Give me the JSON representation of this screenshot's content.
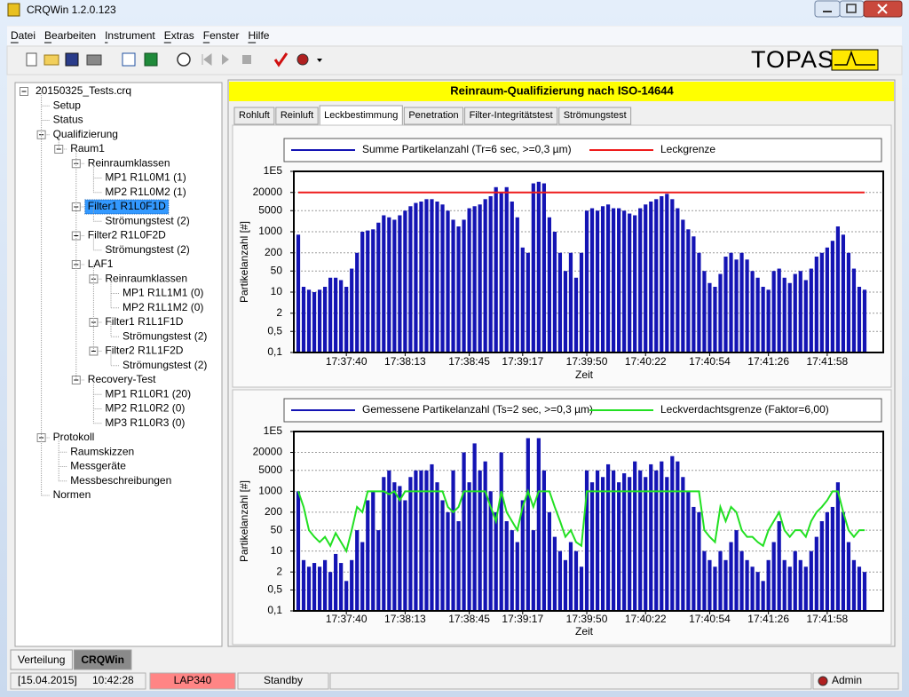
{
  "window": {
    "title": "CRQWin 1.2.0.123"
  },
  "menu": [
    "Datei",
    "Bearbeiten",
    "Instrument",
    "Extras",
    "Fenster",
    "Hilfe"
  ],
  "logo": "TOPAS",
  "tree": {
    "label": "20150325_Tests.crq",
    "children": [
      {
        "label": "Setup"
      },
      {
        "label": "Status"
      },
      {
        "label": "Qualifizierung",
        "children": [
          {
            "label": "Raum1",
            "children": [
              {
                "label": "Reinraumklassen",
                "children": [
                  {
                    "label": "MP1  R1L0M1 (1)"
                  },
                  {
                    "label": "MP2  R1L0M2 (1)"
                  }
                ]
              },
              {
                "label": "Filter1  R1L0F1D",
                "selected": true,
                "children": [
                  {
                    "label": "Strömungstest (2)"
                  }
                ]
              },
              {
                "label": "Filter2  R1L0F2D",
                "children": [
                  {
                    "label": "Strömungstest (2)"
                  }
                ]
              },
              {
                "label": "LAF1",
                "children": [
                  {
                    "label": "Reinraumklassen",
                    "children": [
                      {
                        "label": "MP1  R1L1M1 (0)"
                      },
                      {
                        "label": "MP2  R1L1M2 (0)"
                      }
                    ]
                  },
                  {
                    "label": "Filter1  R1L1F1D",
                    "children": [
                      {
                        "label": "Strömungstest (2)"
                      }
                    ]
                  },
                  {
                    "label": "Filter2  R1L1F2D",
                    "children": [
                      {
                        "label": "Strömungstest (2)"
                      }
                    ]
                  }
                ]
              },
              {
                "label": "Recovery-Test",
                "children": [
                  {
                    "label": "MP1  R1L0R1 (20)"
                  },
                  {
                    "label": "MP2  R1L0R2 (0)"
                  },
                  {
                    "label": "MP3  R1L0R3 (0)"
                  }
                ]
              }
            ]
          }
        ]
      },
      {
        "label": "Protokoll",
        "children": [
          {
            "label": "Raumskizzen"
          },
          {
            "label": "Messgeräte"
          },
          {
            "label": "Messbeschreibungen"
          }
        ]
      },
      {
        "label": "Normen"
      }
    ]
  },
  "header": "Reinraum-Qualifizierung nach ISO-14644",
  "tabs": [
    "Rohluft",
    "Reinluft",
    "Leckbestimmung",
    "Penetration",
    "Filter-Integritätstest",
    "Strömungstest"
  ],
  "active_tab": 2,
  "chart_data": [
    {
      "type": "bar",
      "y_label": "Partikelanzahl [#]",
      "x_label": "Zeit",
      "log_scale": true,
      "grid": true,
      "ylim": [
        0.1,
        100000
      ],
      "yticks": [
        {
          "value": 100000,
          "label": "1E5"
        },
        20000,
        5000,
        1000,
        200,
        50,
        10,
        2,
        {
          "value": 0.5,
          "label": "0,5"
        },
        {
          "value": 0.1,
          "label": "0,1"
        }
      ],
      "categories": [
        null,
        null,
        null,
        null,
        null,
        null,
        null,
        null,
        null,
        "17:37:40",
        null,
        null,
        null,
        null,
        null,
        null,
        null,
        null,
        null,
        null,
        "17:38:13",
        null,
        null,
        null,
        null,
        null,
        null,
        null,
        null,
        null,
        null,
        null,
        "17:38:45",
        null,
        null,
        null,
        null,
        null,
        null,
        null,
        null,
        null,
        "17:39:17",
        null,
        null,
        null,
        null,
        null,
        null,
        null,
        null,
        null,
        null,
        null,
        "17:39:50",
        null,
        null,
        null,
        null,
        null,
        null,
        null,
        null,
        null,
        null,
        "17:40:22",
        null,
        null,
        null,
        null,
        null,
        null,
        null,
        null,
        null,
        null,
        null,
        "17:40:54",
        null,
        null,
        null,
        null,
        null,
        null,
        null,
        null,
        null,
        null,
        "17:41:26",
        null,
        null,
        null,
        null,
        null,
        null,
        null,
        null,
        null,
        null,
        "17:41:58",
        null,
        null,
        null,
        null,
        null,
        null,
        null
      ],
      "series": [
        {
          "name": "Summe Partikelanzahl (Tr=6 sec, >=0,3 µm)",
          "type": "bar",
          "color": "#1414b4",
          "values": [
            800,
            15,
            12,
            10,
            12,
            15,
            30,
            30,
            25,
            15,
            60,
            200,
            1000,
            1100,
            1200,
            2000,
            3500,
            3000,
            2500,
            3500,
            5000,
            7000,
            9000,
            10000,
            12000,
            12000,
            10000,
            8000,
            5000,
            2500,
            1500,
            2500,
            6000,
            7000,
            8000,
            12000,
            15000,
            30000,
            20000,
            30000,
            10000,
            3000,
            300,
            200,
            40000,
            45000,
            40000,
            3000,
            1000,
            200,
            50,
            200,
            30,
            200,
            5000,
            6000,
            5000,
            7000,
            8000,
            6000,
            6000,
            5000,
            4000,
            3500,
            6000,
            8000,
            10000,
            12000,
            15000,
            18000,
            12000,
            6000,
            2500,
            1200,
            700,
            200,
            50,
            20,
            15,
            40,
            150,
            200,
            120,
            200,
            120,
            50,
            30,
            15,
            12,
            50,
            60,
            30,
            20,
            40,
            50,
            25,
            60,
            150,
            200,
            300,
            500,
            1500,
            800,
            200,
            60,
            15,
            12
          ]
        },
        {
          "name": "Leckgrenze",
          "type": "line",
          "color": "#ee1c1c",
          "values": [
            20000,
            20000,
            20000,
            20000,
            20000,
            20000,
            20000,
            20000,
            20000,
            20000,
            20000,
            20000,
            20000,
            20000,
            20000,
            20000,
            20000,
            20000,
            20000,
            20000,
            20000,
            20000,
            20000,
            20000,
            20000,
            20000,
            20000,
            20000,
            20000,
            20000,
            20000,
            20000,
            20000,
            20000,
            20000,
            20000,
            20000,
            20000,
            20000,
            20000,
            20000,
            20000,
            20000,
            20000,
            20000,
            20000,
            20000,
            20000,
            20000,
            20000,
            20000,
            20000,
            20000,
            20000,
            20000,
            20000,
            20000,
            20000,
            20000,
            20000,
            20000,
            20000,
            20000,
            20000,
            20000,
            20000,
            20000,
            20000,
            20000,
            20000,
            20000,
            20000,
            20000,
            20000,
            20000,
            20000,
            20000,
            20000,
            20000,
            20000,
            20000,
            20000,
            20000,
            20000,
            20000,
            20000,
            20000,
            20000,
            20000,
            20000,
            20000,
            20000,
            20000,
            20000,
            20000,
            20000,
            20000,
            20000,
            20000,
            20000,
            20000,
            20000,
            20000,
            20000,
            20000,
            20000,
            20000
          ]
        }
      ]
    },
    {
      "type": "bar",
      "y_label": "Partikelanzahl [#]",
      "x_label": "Zeit",
      "log_scale": true,
      "grid": true,
      "ylim": [
        0.1,
        100000
      ],
      "yticks": [
        {
          "value": 100000,
          "label": "1E5"
        },
        20000,
        5000,
        1000,
        200,
        50,
        10,
        2,
        {
          "value": 0.5,
          "label": "0,5"
        },
        {
          "value": 0.1,
          "label": "0,1"
        }
      ],
      "categories": [
        null,
        null,
        null,
        null,
        null,
        null,
        null,
        null,
        null,
        "17:37:40",
        null,
        null,
        null,
        null,
        null,
        null,
        null,
        null,
        null,
        null,
        "17:38:13",
        null,
        null,
        null,
        null,
        null,
        null,
        null,
        null,
        null,
        null,
        null,
        "17:38:45",
        null,
        null,
        null,
        null,
        null,
        null,
        null,
        null,
        null,
        "17:39:17",
        null,
        null,
        null,
        null,
        null,
        null,
        null,
        null,
        null,
        null,
        null,
        "17:39:50",
        null,
        null,
        null,
        null,
        null,
        null,
        null,
        null,
        null,
        null,
        "17:40:22",
        null,
        null,
        null,
        null,
        null,
        null,
        null,
        null,
        null,
        null,
        null,
        "17:40:54",
        null,
        null,
        null,
        null,
        null,
        null,
        null,
        null,
        null,
        null,
        "17:41:26",
        null,
        null,
        null,
        null,
        null,
        null,
        null,
        null,
        null,
        null,
        "17:41:58",
        null,
        null,
        null,
        null,
        null,
        null,
        null
      ],
      "series": [
        {
          "name": "Gemessene Partikelanzahl (Ts=2 sec, >=0,3 µm)",
          "type": "bar",
          "color": "#1414b4",
          "values": [
            1000,
            5,
            3,
            4,
            3,
            5,
            2,
            8,
            4,
            1,
            5,
            50,
            20,
            500,
            1000,
            50,
            3000,
            5000,
            2000,
            1500,
            500,
            3000,
            5000,
            5000,
            5000,
            8000,
            2000,
            500,
            200,
            5000,
            100,
            20000,
            2000,
            40000,
            5000,
            10000,
            1000,
            200,
            20000,
            100,
            50,
            20,
            500,
            60000,
            50,
            60000,
            5000,
            200,
            30,
            10,
            5,
            20,
            10,
            3,
            5000,
            2000,
            5000,
            3000,
            8000,
            5000,
            2000,
            4000,
            3000,
            10000,
            5000,
            3000,
            8000,
            5000,
            10000,
            3000,
            15000,
            10000,
            3000,
            1000,
            300,
            200,
            10,
            5,
            3,
            10,
            5,
            20,
            50,
            10,
            5,
            3,
            2,
            1,
            5,
            20,
            100,
            5,
            3,
            10,
            5,
            3,
            10,
            30,
            100,
            200,
            300,
            2000,
            200,
            20,
            5,
            3,
            2
          ]
        },
        {
          "name": "Leckverdachtsgrenze (Faktor=6,00)",
          "type": "line",
          "color": "#22e022",
          "values": [
            1000,
            300,
            50,
            30,
            20,
            30,
            15,
            40,
            20,
            10,
            50,
            300,
            200,
            1000,
            1000,
            1000,
            1000,
            800,
            1000,
            500,
            1000,
            1000,
            1000,
            1000,
            1000,
            1000,
            1000,
            1000,
            300,
            200,
            300,
            1000,
            1000,
            1000,
            1000,
            1000,
            300,
            100,
            1000,
            200,
            100,
            50,
            300,
            1000,
            300,
            1000,
            1000,
            1000,
            300,
            100,
            30,
            50,
            20,
            15,
            1000,
            1000,
            1000,
            1000,
            1000,
            1000,
            1000,
            1000,
            1000,
            1000,
            1000,
            1000,
            1000,
            1000,
            1000,
            1000,
            1000,
            1000,
            1000,
            1000,
            1000,
            1000,
            50,
            30,
            20,
            300,
            100,
            300,
            200,
            50,
            30,
            30,
            20,
            15,
            50,
            100,
            200,
            50,
            30,
            50,
            50,
            30,
            100,
            200,
            300,
            500,
            1000,
            1000,
            200,
            50,
            30,
            50,
            50
          ]
        }
      ]
    }
  ],
  "bottom_tabs": [
    "Verteilung",
    "CRQWin"
  ],
  "active_bottom_tab": 1,
  "status": {
    "date": "[15.04.2015]",
    "time": "10:42:28",
    "device": "LAP340",
    "state": "Standby",
    "user": "Admin"
  }
}
